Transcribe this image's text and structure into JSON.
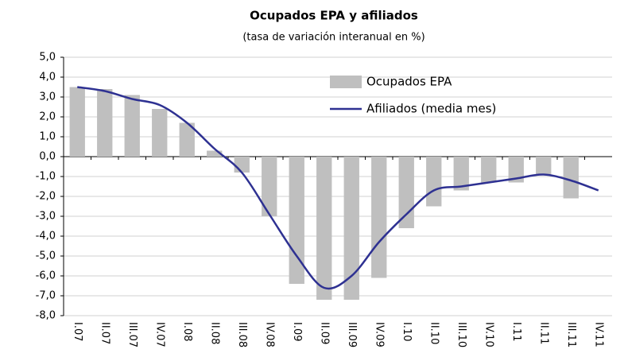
{
  "chart_data": {
    "type": "bar_line",
    "title": "Ocupados EPA y afiliados",
    "subtitle": "(tasa de variación interanual en %)",
    "categories": [
      "I.07",
      "II.07",
      "III.07",
      "IV.07",
      "I.08",
      "II.08",
      "III.08",
      "IV.08",
      "I.09",
      "II.09",
      "III.09",
      "IV.09",
      "I.10",
      "II.10",
      "III.10",
      "IV.10",
      "I.11",
      "II.11",
      "III.11",
      "IV.11"
    ],
    "series": [
      {
        "name": "Ocupados EPA",
        "color": "#bfbfbf",
        "kind": "bar",
        "values": [
          3.5,
          3.4,
          3.1,
          2.4,
          1.7,
          0.3,
          -0.8,
          -3.0,
          -6.4,
          -7.2,
          -7.2,
          -6.1,
          -3.6,
          -2.5,
          -1.7,
          -1.3,
          -1.3,
          -0.9,
          -2.1,
          null
        ]
      },
      {
        "name": "Afiliados (media mes)",
        "color": "#2e3192",
        "kind": "line",
        "values": [
          3.5,
          3.3,
          2.9,
          2.6,
          1.7,
          0.4,
          -0.8,
          -2.9,
          -5.0,
          -6.6,
          -6.0,
          -4.3,
          -2.9,
          -1.7,
          -1.5,
          -1.3,
          -1.1,
          -0.9,
          -1.2,
          -1.7
        ]
      }
    ],
    "ylim": [
      -8,
      5
    ],
    "yticks": [
      {
        "value": 5,
        "label": "5,0"
      },
      {
        "value": 4,
        "label": "4,0"
      },
      {
        "value": 3,
        "label": "3,0"
      },
      {
        "value": 2,
        "label": "2,0"
      },
      {
        "value": 1,
        "label": "1,0"
      },
      {
        "value": 0,
        "label": "0,0"
      },
      {
        "value": -1,
        "label": "-1,0"
      },
      {
        "value": -2,
        "label": "-2,0"
      },
      {
        "value": -3,
        "label": "-3,0"
      },
      {
        "value": -4,
        "label": "-4,0"
      },
      {
        "value": -5,
        "label": "-5,0"
      },
      {
        "value": -6,
        "label": "-6,0"
      },
      {
        "value": -7,
        "label": "-7,0"
      },
      {
        "value": -8,
        "label": "-8,0"
      }
    ],
    "grid": true,
    "legend": "top-right"
  }
}
